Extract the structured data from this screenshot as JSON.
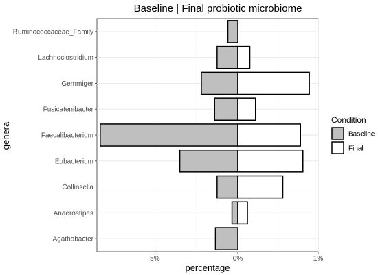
{
  "chart_data": {
    "type": "bar",
    "orientation": "horizontal",
    "title": "Baseline | Final probiotic microbiome",
    "xlabel": "percentage",
    "ylabel": "genera",
    "categories": [
      "Ruminococcaceae_Family",
      "Lachnoclostridium",
      "Gemmiger",
      "Fusicatenibacter",
      "Faecalibacterium",
      "Eubacterium",
      "Collinsella",
      "Anaerostipes",
      "Agathobacter"
    ],
    "series": [
      {
        "name": "Baseline",
        "color": "#bfbfbf",
        "direction": "left",
        "values": [
          0.6,
          1.25,
          2.2,
          1.4,
          8.3,
          3.5,
          1.25,
          0.35,
          1.35
        ]
      },
      {
        "name": "Final",
        "color": "#ffffff",
        "direction": "right",
        "values": [
          0,
          0.15,
          0.89,
          0.22,
          0.78,
          0.81,
          0.56,
          0.12,
          0
        ]
      }
    ],
    "x_ticks": [
      {
        "label": "5%",
        "side": "left",
        "value": 5
      },
      {
        "label": "0%",
        "side": "center",
        "value": 0
      },
      {
        "label": "1%",
        "side": "right",
        "value": 1
      }
    ],
    "xlim_left": [
      0,
      8.5
    ],
    "xlim_right": [
      0,
      1.0
    ],
    "legend": {
      "title": "Condition",
      "position": "right"
    },
    "grid": true
  }
}
